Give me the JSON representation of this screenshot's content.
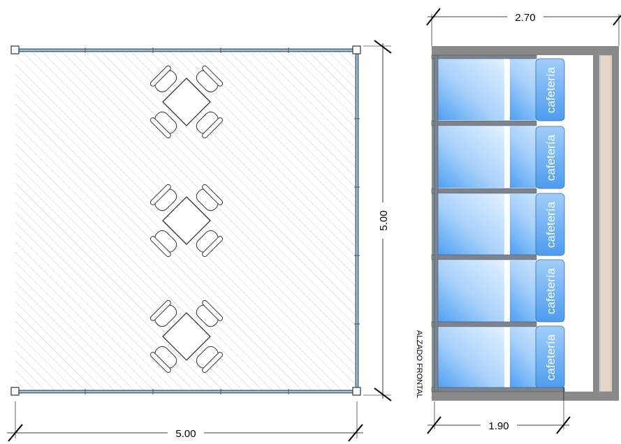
{
  "plan": {
    "width_label": "5.00",
    "height_label": "5.00",
    "tables_count": 3
  },
  "elevation": {
    "title": "ALZADO FRONTAL",
    "width_label": "2.70",
    "panel_width_label": "1.90",
    "panel_text": "cafetería",
    "panels_count": 5
  },
  "colors": {
    "hatch": "#c8c8c8",
    "frame_gray": "#8a8a8a",
    "rail_blue": "#3f6f96",
    "glass_top": "#d9ecff",
    "glass_bottom": "#5aa8f4",
    "sand": "#e6d7c8"
  }
}
